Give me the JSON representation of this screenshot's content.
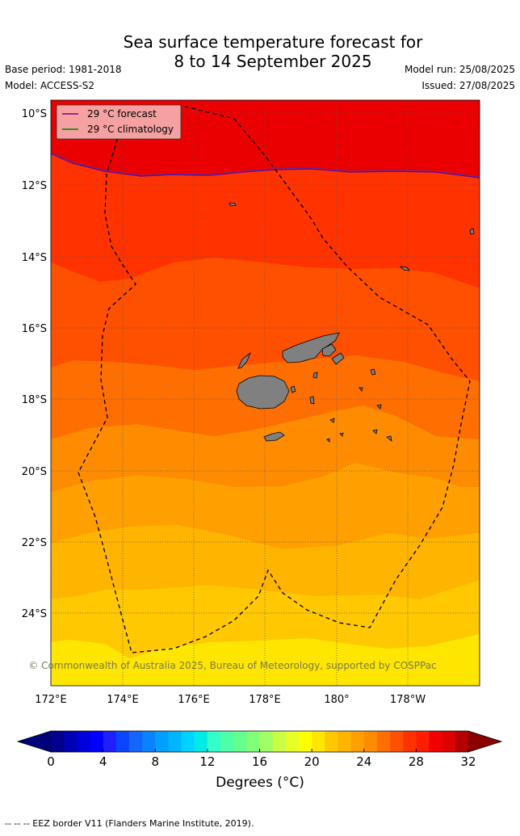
{
  "header": {
    "title_line1": "Sea surface temperature forecast for",
    "title_line2": "8 to 14 September 2025",
    "base_period": "Base period: 1981-2018",
    "model": "Model: ACCESS-S2",
    "model_run": "Model run: 25/08/2025",
    "issued": "Issued: 27/08/2025"
  },
  "legend": {
    "forecast_label": "29 °C  forecast",
    "climatology_label": "29 °C  climatology",
    "forecast_color": "#800080",
    "climatology_color": "#008000"
  },
  "map": {
    "lat_labels": [
      "10°S",
      "12°S",
      "14°S",
      "16°S",
      "18°S",
      "20°S",
      "22°S",
      "24°S"
    ],
    "lon_labels": [
      "172°E",
      "174°E",
      "176°E",
      "178°E",
      "180°",
      "178°W"
    ],
    "copyright": "© Commonwealth of Australia 2025, Bureau of Meteorology, supported by COSPPac",
    "land_color": "#808080"
  },
  "colorbar": {
    "ticks": [
      "0",
      "4",
      "8",
      "12",
      "16",
      "20",
      "24",
      "28",
      "32"
    ],
    "label": "Degrees (°C)",
    "colors": [
      "#00008b",
      "#0000b4",
      "#0000dc",
      "#0000ff",
      "#1e1eff",
      "#0a46ff",
      "#1464ff",
      "#0a82ff",
      "#00a0ff",
      "#00b4ff",
      "#00d2ff",
      "#00ebe6",
      "#32ffc8",
      "#50ffaa",
      "#64ff8c",
      "#82ff78",
      "#a0ff64",
      "#c8ff46",
      "#e6ff28",
      "#ffff00",
      "#ffe600",
      "#ffc800",
      "#ffb400",
      "#ffa000",
      "#ff8c00",
      "#ff6e00",
      "#ff5000",
      "#ff3200",
      "#ff1e00",
      "#f00000",
      "#dc0000",
      "#b40000"
    ],
    "under_color": "#00007a",
    "over_color": "#8b0000"
  },
  "footer": "--  --  -- EEZ border V11 (Flanders Marine Institute, 2019)."
}
